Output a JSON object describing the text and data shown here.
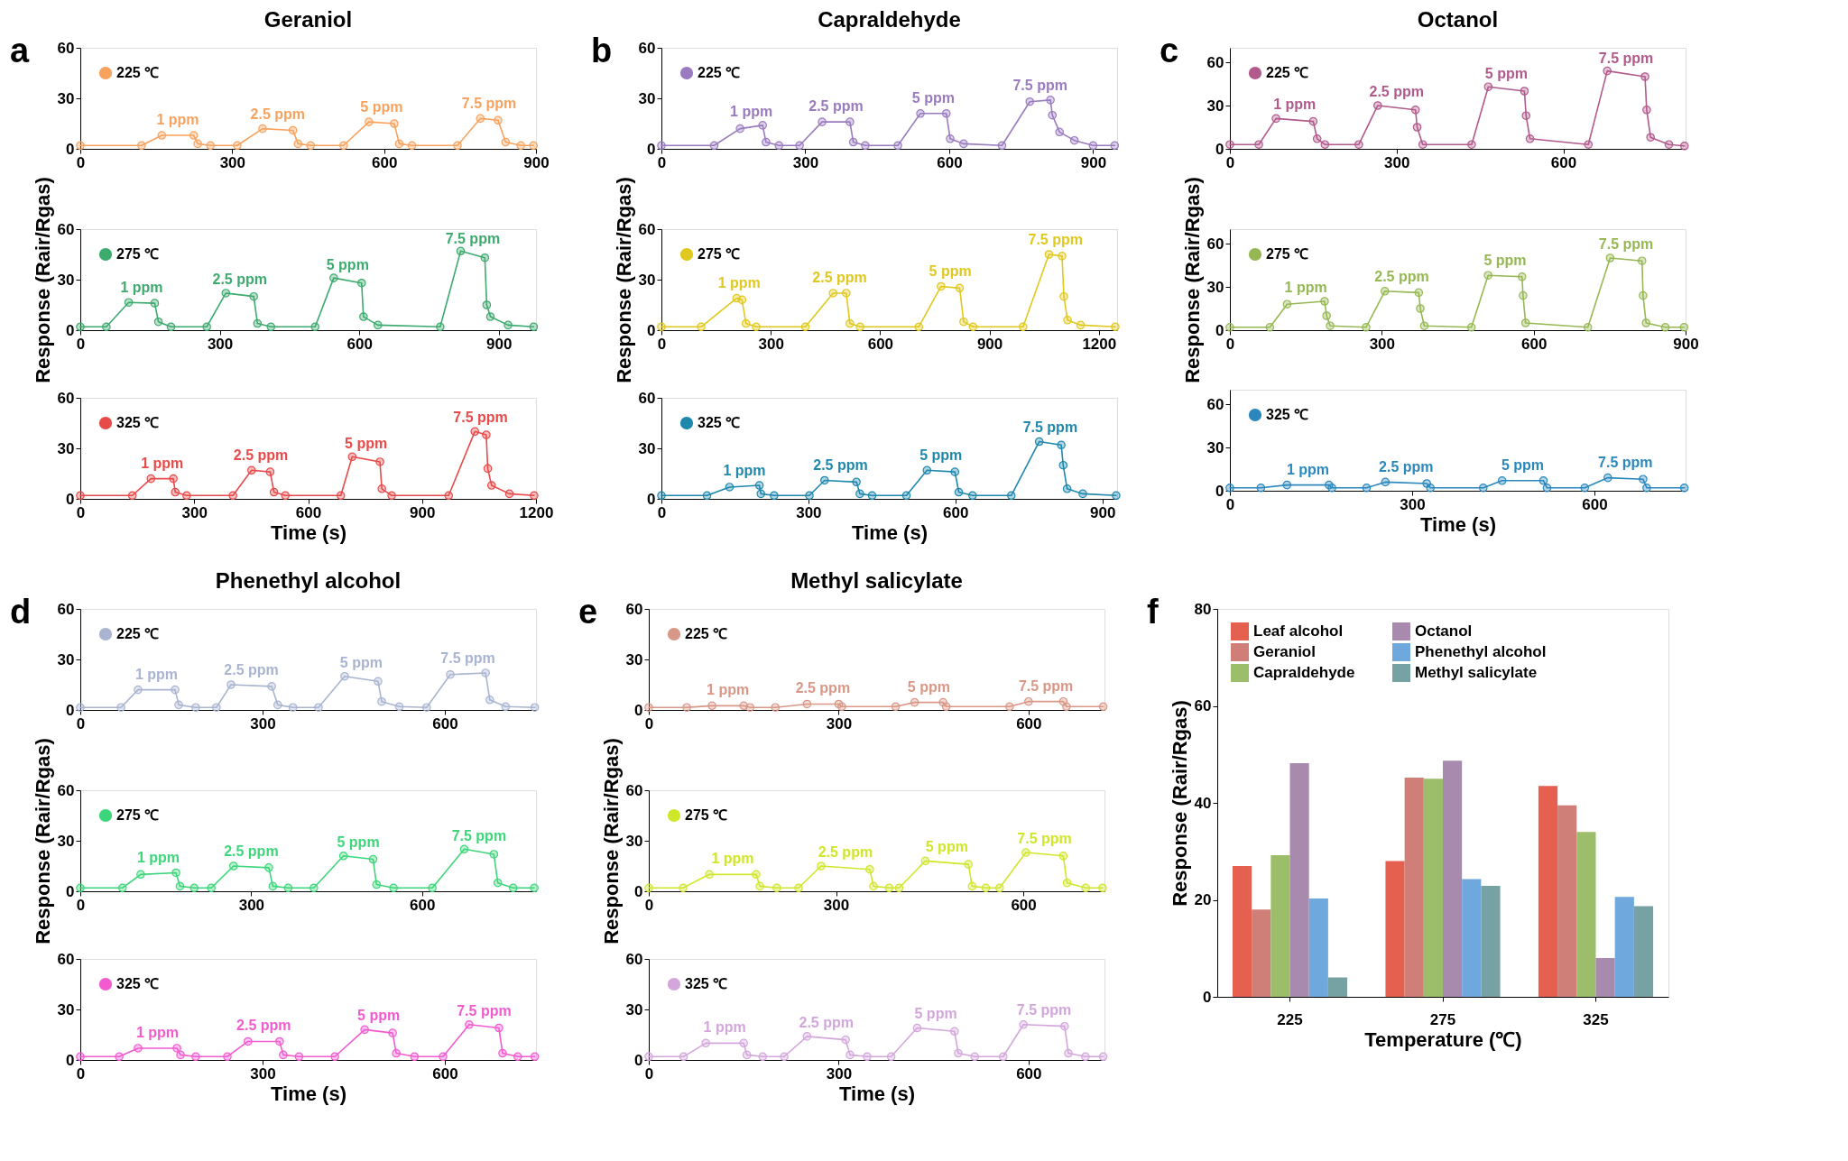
{
  "chart_data": [
    {
      "type": "line",
      "title": "Geraniol",
      "annotations": [
        "a",
        {
          "text": "1 ppm",
          "x": 192.5,
          "y": 8
        },
        {
          "text": "2.5 ppm",
          "x": 390,
          "y": 11.5
        },
        {
          "text": "5 ppm",
          "x": 595,
          "y": 15.5
        },
        {
          "text": "7.5 ppm",
          "x": 807.5,
          "y": 17.5
        }
      ],
      "x": [
        0,
        121,
        161,
        224,
        232,
        257,
        310,
        360,
        420,
        430,
        455,
        520,
        570,
        620,
        630,
        655,
        745,
        790,
        825,
        840,
        870,
        895
      ],
      "series": [
        {
          "name": "225 ℃",
          "color": "#f7a25e",
          "values": [
            2,
            2,
            8,
            8,
            3,
            2,
            2,
            12,
            11,
            3,
            2,
            2,
            16,
            15,
            3,
            2,
            2,
            18,
            17,
            4,
            2,
            2
          ]
        }
      ],
      "xlim": [
        0,
        900
      ],
      "xticks": [
        0,
        300,
        600,
        900
      ],
      "ylim": [
        0,
        60
      ],
      "yticks": [
        0,
        30,
        60
      ],
      "marker": "circle",
      "legend": "top left"
    },
    {
      "type": "line",
      "ylabel": "Response (Rair/Rgas)",
      "annotations": [
        {
          "text": "1 ppm",
          "x": 132,
          "y": 16.25
        },
        {
          "text": "2.5 ppm",
          "x": 343,
          "y": 21
        },
        {
          "text": "5 ppm",
          "x": 575,
          "y": 29.5
        },
        {
          "text": "7.5 ppm",
          "x": 844,
          "y": 45
        }
      ],
      "x": [
        0,
        56,
        104,
        160,
        168,
        195,
        272,
        313,
        373,
        381,
        410,
        505,
        545,
        605,
        609,
        640,
        774,
        818,
        870,
        874,
        882,
        920,
        975
      ],
      "series": [
        {
          "name": "275 ℃",
          "color": "#3daa6e",
          "values": [
            2,
            2,
            16.5,
            16,
            5,
            2,
            2,
            22,
            20,
            4,
            2,
            2,
            31,
            28,
            8,
            3,
            2,
            47,
            43,
            15,
            8,
            3,
            2
          ]
        }
      ],
      "xlim": [
        0,
        980
      ],
      "xticks": [
        0,
        300,
        600,
        900
      ],
      "ylim": [
        0,
        60
      ],
      "yticks": [
        0,
        30,
        60
      ],
      "marker": "circle",
      "legend": "top left"
    },
    {
      "type": "line",
      "xlabel": "Time (s)",
      "annotations": [
        {
          "text": "1 ppm",
          "x": 215.5,
          "y": 12
        },
        {
          "text": "2.5 ppm",
          "x": 475.5,
          "y": 16.5
        },
        {
          "text": "5 ppm",
          "x": 752.5,
          "y": 23.5
        },
        {
          "text": "7.5 ppm",
          "x": 1054,
          "y": 39
        }
      ],
      "x": [
        0,
        137,
        186,
        245,
        250,
        280,
        402,
        451,
        500,
        510,
        540,
        686,
        716,
        789,
        794,
        820,
        970,
        1039,
        1069,
        1073,
        1083,
        1130,
        1195
      ],
      "series": [
        {
          "name": "325 ℃",
          "color": "#e84a4a",
          "values": [
            2,
            2,
            12,
            12,
            4,
            2,
            2,
            17,
            16,
            4,
            2,
            2,
            25,
            22,
            6,
            2,
            2,
            40,
            38,
            18,
            8,
            3,
            2
          ]
        }
      ],
      "xlim": [
        0,
        1200
      ],
      "xticks": [
        0,
        300,
        600,
        900,
        1200
      ],
      "ylim": [
        0,
        60
      ],
      "yticks": [
        0,
        30,
        60
      ],
      "marker": "circle",
      "legend": "top left"
    },
    {
      "type": "line",
      "title": "Capraldehyde",
      "annotations": [
        "b",
        {
          "text": "1 ppm",
          "x": 187.5,
          "y": 13
        },
        {
          "text": "2.5 ppm",
          "x": 364,
          "y": 16
        },
        {
          "text": "5 ppm",
          "x": 567,
          "y": 21
        },
        {
          "text": "7.5 ppm",
          "x": 789.5,
          "y": 28.5
        }
      ],
      "x": [
        0,
        110,
        164,
        211,
        218,
        245,
        288,
        335,
        393,
        400,
        425,
        493,
        540,
        594,
        602,
        630,
        710,
        768,
        811,
        815,
        830,
        861,
        900,
        945
      ],
      "series": [
        {
          "name": "225 ℃",
          "color": "#9a7bbf",
          "values": [
            2,
            2,
            12,
            14,
            4,
            2,
            2,
            16,
            16,
            4,
            2,
            2,
            21,
            21,
            6,
            3,
            2,
            28,
            29,
            20,
            10,
            5,
            2,
            2
          ]
        }
      ],
      "xlim": [
        0,
        950
      ],
      "xticks": [
        0,
        300,
        600,
        900
      ],
      "ylim": [
        0,
        60
      ],
      "yticks": [
        0,
        30,
        60
      ],
      "marker": "circle",
      "legend": "top left"
    },
    {
      "type": "line",
      "ylabel": "Response (Rair/Rgas)",
      "annotations": [
        {
          "text": "1 ppm",
          "x": 213.5,
          "y": 18.5
        },
        {
          "text": "2.5 ppm",
          "x": 489,
          "y": 22
        },
        {
          "text": "5 ppm",
          "x": 792.5,
          "y": 25.5
        },
        {
          "text": "7.5 ppm",
          "x": 1081,
          "y": 44.5
        }
      ],
      "x": [
        0,
        109,
        206,
        221,
        232,
        260,
        395,
        471,
        507,
        517,
        545,
        706,
        767,
        818,
        829,
        855,
        992,
        1063,
        1099,
        1104,
        1114,
        1150,
        1245
      ],
      "series": [
        {
          "name": "275 ℃",
          "color": "#e0c81e",
          "values": [
            2,
            2,
            19,
            18,
            4,
            2,
            2,
            22,
            22,
            4,
            2,
            2,
            26,
            25,
            5,
            2,
            2,
            45,
            44,
            20,
            6,
            3,
            2
          ]
        }
      ],
      "xlim": [
        0,
        1250
      ],
      "xticks": [
        0,
        300,
        600,
        900,
        1200
      ],
      "ylim": [
        0,
        60
      ],
      "yticks": [
        0,
        30,
        60
      ],
      "marker": "circle",
      "legend": "top left"
    },
    {
      "type": "line",
      "xlabel": "Time (s)",
      "annotations": [
        {
          "text": "1 ppm",
          "x": 169.5,
          "y": 7.5
        },
        {
          "text": "2.5 ppm",
          "x": 365.5,
          "y": 10.5
        },
        {
          "text": "5 ppm",
          "x": 570.5,
          "y": 16.5
        },
        {
          "text": "7.5 ppm",
          "x": 793.5,
          "y": 33
        }
      ],
      "x": [
        0,
        93,
        139,
        200,
        203,
        230,
        302,
        333,
        398,
        405,
        430,
        500,
        542,
        599,
        607,
        635,
        714,
        771,
        816,
        820,
        828,
        860,
        928
      ],
      "series": [
        {
          "name": "325 ℃",
          "color": "#1f88ad",
          "values": [
            2,
            2,
            7,
            8,
            3,
            2,
            2,
            11,
            10,
            3,
            2,
            2,
            17,
            16,
            4,
            2,
            2,
            34,
            32,
            20,
            6,
            3,
            2
          ]
        }
      ],
      "xlim": [
        0,
        930
      ],
      "xticks": [
        0,
        300,
        600,
        900
      ],
      "ylim": [
        0,
        60
      ],
      "yticks": [
        0,
        30,
        60
      ],
      "marker": "circle",
      "legend": "top left"
    },
    {
      "type": "line",
      "title": "Octanol",
      "annotations": [
        "c",
        {
          "text": "1 ppm",
          "x": 116.5,
          "y": 20
        },
        {
          "text": "2.5 ppm",
          "x": 300,
          "y": 28.5
        },
        {
          "text": "5 ppm",
          "x": 497.5,
          "y": 41.5
        },
        {
          "text": "7.5 ppm",
          "x": 713,
          "y": 52
        }
      ],
      "x": [
        0,
        52,
        83,
        150,
        157,
        171,
        232,
        266,
        334,
        337,
        347,
        435,
        465,
        530,
        533,
        540,
        645,
        679,
        747,
        750,
        757,
        790,
        818
      ],
      "series": [
        {
          "name": "225 ℃",
          "color": "#b15a8c",
          "values": [
            3,
            3,
            21,
            19,
            7,
            3,
            3,
            30,
            27,
            15,
            3,
            3,
            43,
            40,
            23,
            7,
            3,
            54,
            50,
            27,
            8,
            3,
            2
          ]
        }
      ],
      "xlim": [
        0,
        820
      ],
      "xticks": [
        0,
        300,
        600
      ],
      "ylim": [
        0,
        70
      ],
      "yticks": [
        0,
        30,
        60
      ],
      "marker": "circle",
      "legend": "top left"
    },
    {
      "type": "line",
      "ylabel": "Response (Rair/Rgas)",
      "annotations": [
        {
          "text": "1 ppm",
          "x": 150,
          "y": 19
        },
        {
          "text": "2.5 ppm",
          "x": 339.5,
          "y": 26.5
        },
        {
          "text": "5 ppm",
          "x": 543.5,
          "y": 37.5
        },
        {
          "text": "7.5 ppm",
          "x": 782.5,
          "y": 49
        }
      ],
      "x": [
        0,
        79,
        113,
        187,
        191,
        198,
        269,
        306,
        373,
        376,
        384,
        477,
        510,
        577,
        579,
        584,
        707,
        751,
        814,
        816,
        822,
        860,
        897
      ],
      "series": [
        {
          "name": "275 ℃",
          "color": "#96b854",
          "values": [
            2,
            2,
            18,
            20,
            10,
            3,
            2,
            27,
            26,
            15,
            3,
            2,
            38,
            37,
            24,
            5,
            2,
            50,
            48,
            24,
            5,
            2,
            2
          ]
        }
      ],
      "xlim": [
        0,
        900
      ],
      "xticks": [
        0,
        300,
        600,
        900
      ],
      "ylim": [
        0,
        70
      ],
      "yticks": [
        0,
        30,
        60
      ],
      "marker": "circle",
      "legend": "top left"
    },
    {
      "type": "line",
      "xlabel": "Time (s)",
      "annotations": [
        {
          "text": "1 ppm",
          "x": 128.5,
          "y": 4
        },
        {
          "text": "2.5 ppm",
          "x": 290,
          "y": 5.5
        },
        {
          "text": "5 ppm",
          "x": 482,
          "y": 7
        },
        {
          "text": "7.5 ppm",
          "x": 651,
          "y": 8.5
        }
      ],
      "x": [
        0,
        51,
        94,
        163,
        168,
        225,
        256,
        324,
        330,
        417,
        448,
        516,
        522,
        584,
        622,
        680,
        686,
        748
      ],
      "series": [
        {
          "name": "325 ℃",
          "color": "#2a88bd",
          "values": [
            2,
            2,
            4,
            4,
            2,
            2,
            6,
            5,
            2,
            2,
            7,
            7,
            2,
            2,
            9,
            8,
            2,
            2
          ]
        }
      ],
      "xlim": [
        0,
        750
      ],
      "xticks": [
        0,
        300,
        600
      ],
      "ylim": [
        0,
        70
      ],
      "yticks": [
        0,
        30,
        60
      ],
      "marker": "circle",
      "legend": "top left"
    },
    {
      "type": "line",
      "title": "Phenethyl alcohol",
      "annotations": [
        "d",
        {
          "text": "1 ppm",
          "x": 125.5,
          "y": 12
        },
        {
          "text": "2.5 ppm",
          "x": 281.5,
          "y": 14.5
        },
        {
          "text": "5 ppm",
          "x": 462.5,
          "y": 18.5
        },
        {
          "text": "7.5 ppm",
          "x": 638,
          "y": 21.5
        }
      ],
      "x": [
        0,
        67,
        95,
        156,
        162,
        190,
        224,
        248,
        315,
        325,
        350,
        392,
        435,
        490,
        496,
        525,
        570,
        609,
        667,
        674,
        700,
        748
      ],
      "series": [
        {
          "name": "225 ℃",
          "color": "#a8b4d0",
          "values": [
            1.5,
            1.5,
            12,
            12,
            3,
            1.5,
            1.5,
            15,
            14,
            3,
            1.5,
            1.5,
            20,
            17,
            5,
            2,
            1.5,
            21,
            22,
            6,
            2,
            1.5
          ]
        }
      ],
      "xlim": [
        0,
        750
      ],
      "xticks": [
        0,
        300,
        600
      ],
      "ylim": [
        0,
        60
      ],
      "yticks": [
        0,
        30,
        60
      ],
      "marker": "circle",
      "legend": "top left"
    },
    {
      "type": "line",
      "ylabel": "Response (Rair/Rgas)",
      "annotations": [
        {
          "text": "1 ppm",
          "x": 137,
          "y": 10.5
        },
        {
          "text": "2.5 ppm",
          "x": 300,
          "y": 14.5
        },
        {
          "text": "5 ppm",
          "x": 488,
          "y": 20
        },
        {
          "text": "7.5 ppm",
          "x": 700,
          "y": 23.5
        }
      ],
      "x": [
        0,
        74,
        106,
        168,
        175,
        200,
        230,
        269,
        331,
        338,
        365,
        410,
        462,
        514,
        520,
        550,
        618,
        674,
        726,
        733,
        760,
        797
      ],
      "series": [
        {
          "name": "275 ℃",
          "color": "#3dd67a",
          "values": [
            2,
            2,
            10,
            11,
            3,
            2,
            2,
            15,
            14,
            3,
            2,
            2,
            21,
            19,
            4,
            2,
            2,
            25,
            22,
            5,
            2,
            2
          ]
        }
      ],
      "xlim": [
        0,
        800
      ],
      "xticks": [
        0,
        300,
        600
      ],
      "ylim": [
        0,
        60
      ],
      "yticks": [
        0,
        30,
        60
      ],
      "marker": "circle",
      "legend": "top left"
    },
    {
      "type": "line",
      "xlabel": "Time (s)",
      "annotations": [
        {
          "text": "1 ppm",
          "x": 127,
          "y": 7
        },
        {
          "text": "2.5 ppm",
          "x": 302,
          "y": 11
        },
        {
          "text": "5 ppm",
          "x": 491,
          "y": 17
        },
        {
          "text": "7.5 ppm",
          "x": 664.5,
          "y": 20
        }
      ],
      "x": [
        0,
        64,
        95,
        159,
        165,
        190,
        242,
        276,
        328,
        334,
        360,
        419,
        468,
        514,
        520,
        550,
        597,
        640,
        689,
        695,
        720,
        748
      ],
      "series": [
        {
          "name": "325 ℃",
          "color": "#f25bd0",
          "values": [
            2,
            2,
            7,
            7,
            3,
            2,
            2,
            11,
            11,
            3,
            2,
            2,
            18,
            16,
            4,
            2,
            2,
            21,
            19,
            4,
            2,
            2
          ]
        }
      ],
      "xlim": [
        0,
        750
      ],
      "xticks": [
        0,
        300,
        600
      ],
      "ylim": [
        0,
        60
      ],
      "yticks": [
        0,
        30,
        60
      ],
      "marker": "circle",
      "legend": "top left"
    },
    {
      "type": "line",
      "title": "Methyl salicylate",
      "annotations": [
        "e",
        {
          "text": "1 ppm",
          "x": 125,
          "y": 2.5
        },
        {
          "text": "2.5 ppm",
          "x": 275,
          "y": 3.5
        },
        {
          "text": "5 ppm",
          "x": 442.5,
          "y": 4.5
        },
        {
          "text": "7.5 ppm",
          "x": 627.5,
          "y": 5
        }
      ],
      "x": [
        0,
        60,
        100,
        150,
        160,
        200,
        250,
        300,
        305,
        390,
        420,
        465,
        470,
        570,
        600,
        655,
        660,
        718
      ],
      "series": [
        {
          "name": "225 ℃",
          "color": "#d99787",
          "values": [
            1.5,
            1.5,
            2.5,
            2.5,
            1.5,
            1.5,
            3.5,
            3.5,
            2,
            2,
            4.5,
            4.5,
            2,
            2,
            5,
            5,
            2,
            2
          ]
        }
      ],
      "xlim": [
        0,
        720
      ],
      "xticks": [
        0,
        300,
        600
      ],
      "ylim": [
        0,
        60
      ],
      "yticks": [
        0,
        30,
        60
      ],
      "marker": "circle",
      "legend": "top left"
    },
    {
      "type": "line",
      "ylabel": "Response (Rair/Rgas)",
      "annotations": [
        {
          "text": "1 ppm",
          "x": 134.5,
          "y": 10
        },
        {
          "text": "2.5 ppm",
          "x": 315,
          "y": 14
        },
        {
          "text": "5 ppm",
          "x": 477.5,
          "y": 17
        },
        {
          "text": "7.5 ppm",
          "x": 634,
          "y": 22
        }
      ],
      "x": [
        0,
        55,
        97,
        172,
        178,
        205,
        240,
        276,
        354,
        360,
        385,
        401,
        443,
        512,
        518,
        540,
        562,
        604,
        664,
        670,
        700,
        727
      ],
      "series": [
        {
          "name": "275 ℃",
          "color": "#d0e62a",
          "values": [
            2,
            2,
            10,
            10,
            3,
            2,
            2,
            15,
            13,
            3,
            2,
            2,
            18,
            16,
            3,
            2,
            2,
            23,
            21,
            5,
            2,
            2
          ]
        }
      ],
      "xlim": [
        0,
        730
      ],
      "xticks": [
        0,
        300,
        600
      ],
      "ylim": [
        0,
        60
      ],
      "yticks": [
        0,
        30,
        60
      ],
      "marker": "circle",
      "legend": "top left"
    },
    {
      "type": "line",
      "xlabel": "Time (s)",
      "annotations": [
        {
          "text": "1 ppm",
          "x": 120,
          "y": 10
        },
        {
          "text": "2.5 ppm",
          "x": 280.5,
          "y": 13
        },
        {
          "text": "5 ppm",
          "x": 453.5,
          "y": 18
        },
        {
          "text": "7.5 ppm",
          "x": 624.5,
          "y": 20.5
        }
      ],
      "x": [
        0,
        55,
        90,
        150,
        155,
        180,
        214,
        250,
        311,
        318,
        345,
        383,
        424,
        483,
        489,
        515,
        560,
        592,
        657,
        663,
        690,
        718
      ],
      "series": [
        {
          "name": "325 ℃",
          "color": "#d3a6dc",
          "values": [
            2,
            2,
            10,
            10,
            3,
            2,
            2,
            14,
            12,
            3,
            2,
            2,
            19,
            17,
            4,
            2,
            2,
            21,
            20,
            4,
            2,
            2
          ]
        }
      ],
      "xlim": [
        0,
        720
      ],
      "xticks": [
        0,
        300,
        600
      ],
      "ylim": [
        0,
        60
      ],
      "yticks": [
        0,
        30,
        60
      ],
      "marker": "circle",
      "legend": "top left"
    },
    {
      "type": "bar",
      "xlabel": "Temperature (℃)",
      "ylabel": "Response (Rair/Rgas)",
      "annotations": [
        "f"
      ],
      "categories": [
        "225",
        "275",
        "325"
      ],
      "series": [
        {
          "name": "Leaf alcohol",
          "color": "#e5604f",
          "values": [
            27,
            28,
            43.5
          ]
        },
        {
          "name": "Geraniol",
          "color": "#cf7f78",
          "values": [
            18,
            45.2,
            39.5
          ]
        },
        {
          "name": "Capraldehyde",
          "color": "#9cbd6a",
          "values": [
            29.2,
            45,
            34
          ]
        },
        {
          "name": "Octanol",
          "color": "#a78aad",
          "values": [
            48.2,
            48.7,
            8
          ]
        },
        {
          "name": "Phenethyl alcohol",
          "color": "#6ea8dc",
          "values": [
            20.3,
            24.3,
            20.6
          ]
        },
        {
          "name": "Methyl salicylate",
          "color": "#76a2a4",
          "values": [
            4,
            22.9,
            18.7
          ]
        }
      ],
      "ylim": [
        0,
        80
      ],
      "yticks": [
        0,
        20,
        40,
        60,
        80
      ],
      "legend": "top left"
    }
  ]
}
